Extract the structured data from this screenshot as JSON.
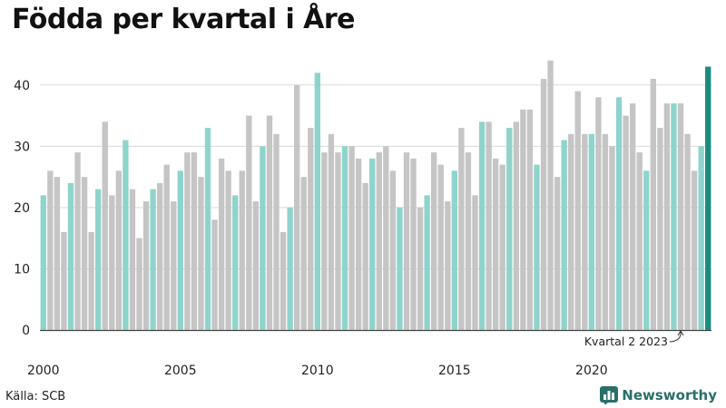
{
  "page": {
    "title": "Födda per kvartal i Åre",
    "source": "Källa: SCB",
    "brand": "Newsworthy"
  },
  "colors": {
    "q1": "#8fd4cc",
    "other": "#c5c5c5",
    "latest": "#1a8c7f",
    "grid": "#d9d9d9",
    "axis": "#444444",
    "text": "#222222",
    "brand": "#2a6f6a"
  },
  "chart_data": {
    "type": "bar",
    "title": "Födda per kvartal i Åre",
    "xlabel": "",
    "ylabel": "",
    "ylim": [
      0,
      45
    ],
    "yticks": [
      0,
      10,
      20,
      30,
      40
    ],
    "grid": true,
    "start": {
      "year": 2000,
      "quarter": 1
    },
    "x_tick_labels": [
      "2000",
      "2005",
      "2010",
      "2015",
      "2020"
    ],
    "annotation": {
      "text": "Kvartal 2 2023",
      "target_index": 93
    },
    "highlight_rule": "first quarter of each year highlighted; most recent quarter dark",
    "values": [
      22,
      26,
      25,
      16,
      24,
      29,
      25,
      16,
      23,
      34,
      22,
      26,
      31,
      23,
      15,
      21,
      23,
      24,
      27,
      21,
      26,
      29,
      29,
      25,
      33,
      18,
      28,
      26,
      22,
      26,
      35,
      21,
      30,
      35,
      32,
      16,
      20,
      40,
      25,
      33,
      42,
      29,
      32,
      29,
      30,
      30,
      28,
      24,
      28,
      29,
      30,
      26,
      20,
      29,
      28,
      20,
      22,
      29,
      27,
      21,
      26,
      33,
      29,
      22,
      34,
      34,
      28,
      27,
      33,
      34,
      36,
      36,
      27,
      41,
      44,
      25,
      31,
      32,
      39,
      32,
      32,
      38,
      32,
      30,
      38,
      35,
      37,
      29,
      26,
      41,
      33,
      37,
      37,
      37,
      32,
      26,
      30,
      43
    ]
  }
}
